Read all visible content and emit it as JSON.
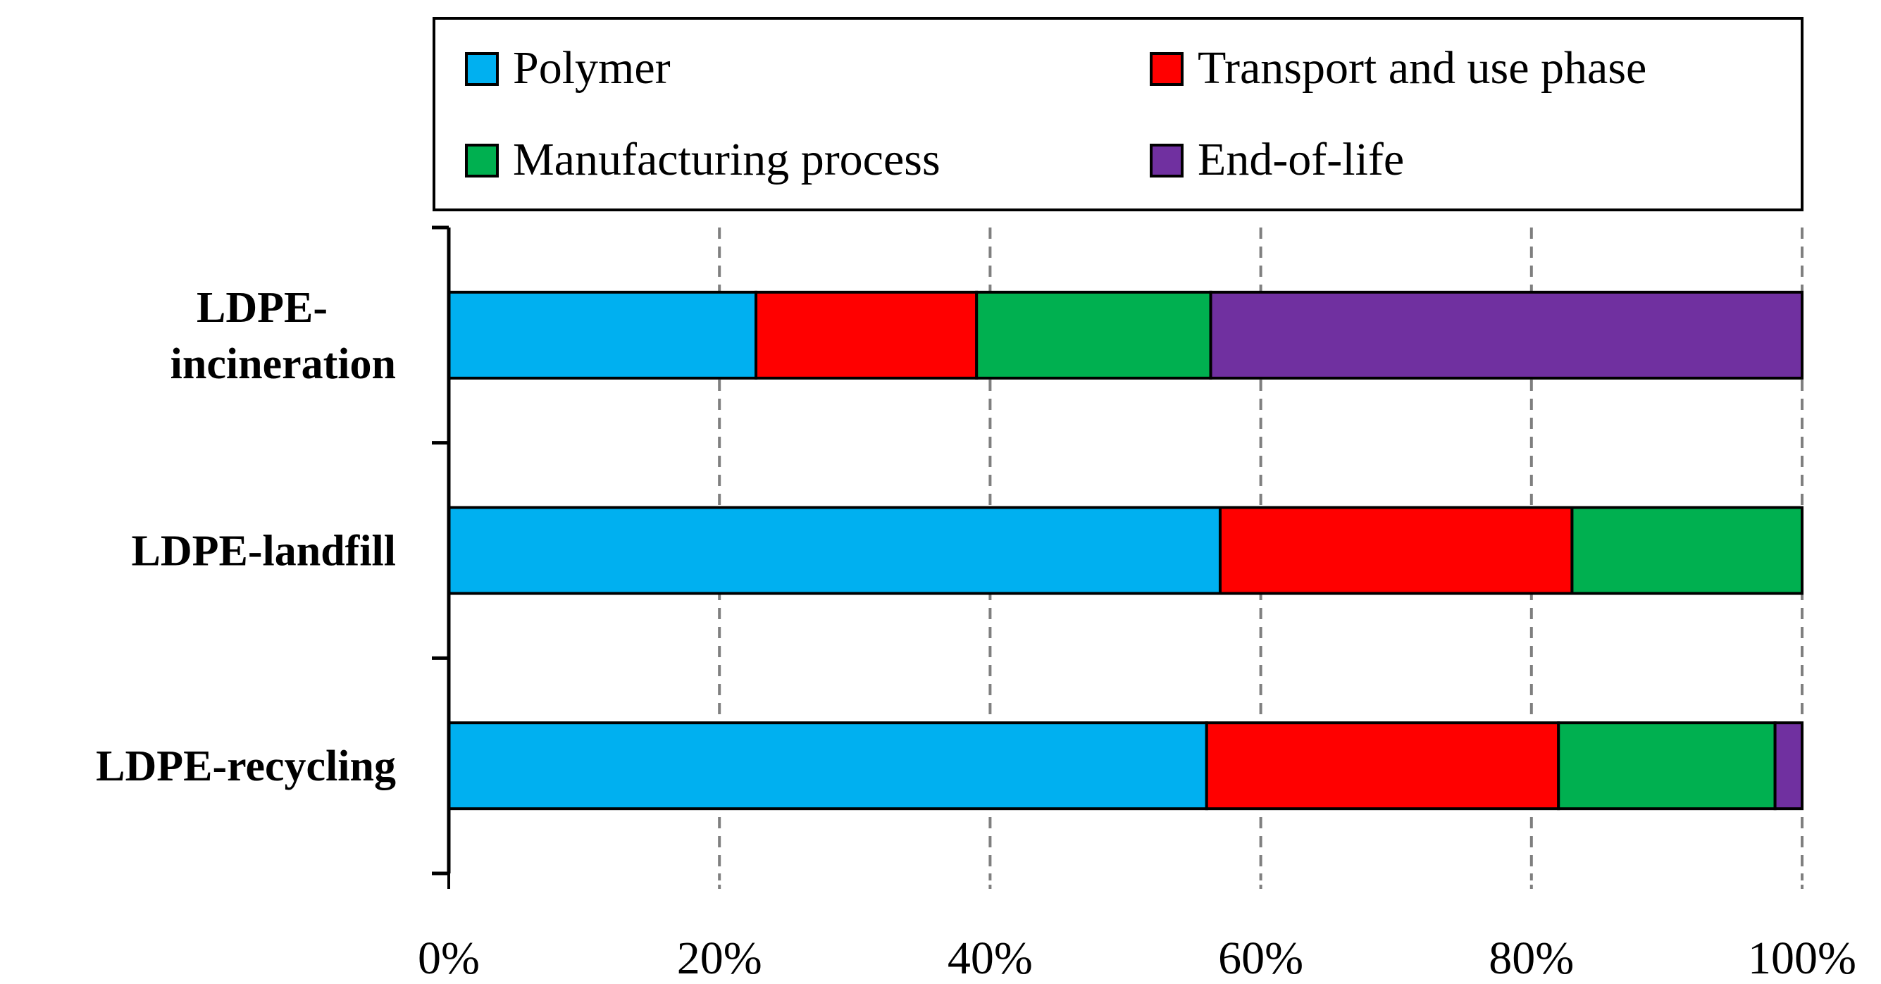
{
  "chart_data": {
    "type": "bar",
    "orientation": "horizontal",
    "stacked": true,
    "normalized": true,
    "title": "",
    "xlabel": "",
    "ylabel": "",
    "xlim": [
      0,
      100
    ],
    "grid": "vertical dashed",
    "legend_position": "top",
    "categories": [
      [
        "LDPE-",
        "incineration"
      ],
      [
        "LDPE-landfill"
      ],
      [
        "LDPE-recycling"
      ]
    ],
    "x_ticks": [
      "0%",
      "20%",
      "40%",
      "60%",
      "80%",
      "100%"
    ],
    "series": [
      {
        "name": "Polymer",
        "color": "#00B0F0",
        "values": [
          22.7,
          57.0,
          56.0
        ]
      },
      {
        "name": "Transport and use phase",
        "color": "#FF0000",
        "values": [
          16.3,
          26.0,
          26.0
        ]
      },
      {
        "name": "Manufacturing process",
        "color": "#00B050",
        "values": [
          17.3,
          17.0,
          16.0
        ]
      },
      {
        "name": "End-of-life",
        "color": "#7030A0",
        "values": [
          43.7,
          0,
          2.0
        ]
      }
    ]
  }
}
